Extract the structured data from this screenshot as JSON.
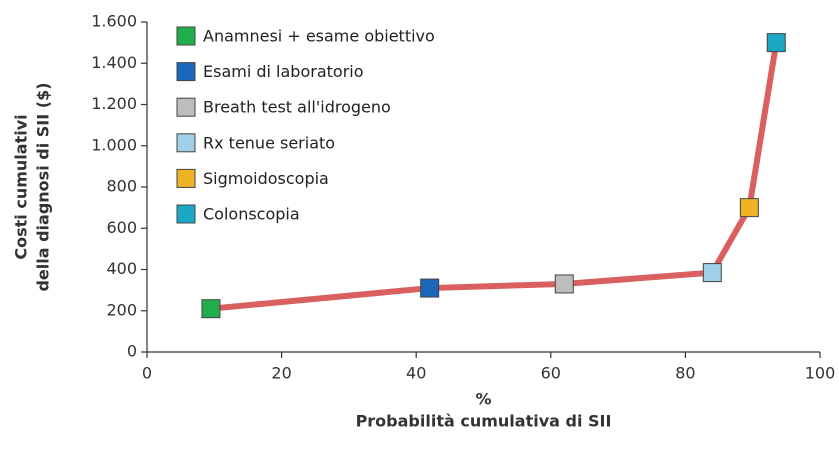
{
  "chart_data": {
    "type": "line",
    "ylabel": [
      "Costi cumulativi",
      "della diagnosi di SII ($)"
    ],
    "xlabel": [
      "%",
      "Probabilità cumulativa di SII"
    ],
    "x": [
      9.5,
      42,
      62,
      84,
      89.5,
      93.5
    ],
    "values": [
      210,
      310,
      330,
      385,
      700,
      1500
    ],
    "point_names": [
      "Anamnesi + esame obiettivo",
      "Esami di laboratorio",
      "Breath test all'idrogeno",
      "Rx tenue seriato",
      "Sigmoidoscopia",
      "Colonscopia"
    ],
    "point_colors": [
      "#1fae4b",
      "#1a66b8",
      "#bdbdbd",
      "#9fd0e8",
      "#f0b323",
      "#1aa8c4"
    ],
    "line_color": "#d9605f",
    "xlim": [
      0,
      100
    ],
    "xticks": [
      0,
      20,
      40,
      60,
      80,
      100
    ],
    "ylim": [
      0,
      1600
    ],
    "yticks": [
      0,
      200,
      400,
      600,
      800,
      {
        "value": 1000,
        "label": "1.000"
      },
      {
        "value": 1200,
        "label": "1.200"
      },
      {
        "value": 1400,
        "label": "1.400"
      },
      {
        "value": 1600,
        "label": "1.600"
      }
    ]
  }
}
